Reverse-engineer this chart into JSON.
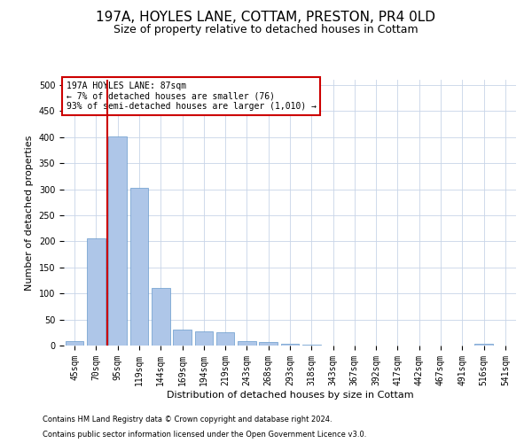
{
  "title": "197A, HOYLES LANE, COTTAM, PRESTON, PR4 0LD",
  "subtitle": "Size of property relative to detached houses in Cottam",
  "xlabel": "Distribution of detached houses by size in Cottam",
  "ylabel": "Number of detached properties",
  "footnote1": "Contains HM Land Registry data © Crown copyright and database right 2024.",
  "footnote2": "Contains public sector information licensed under the Open Government Licence v3.0.",
  "categories": [
    "45sqm",
    "70sqm",
    "95sqm",
    "119sqm",
    "144sqm",
    "169sqm",
    "194sqm",
    "219sqm",
    "243sqm",
    "268sqm",
    "293sqm",
    "318sqm",
    "343sqm",
    "367sqm",
    "392sqm",
    "417sqm",
    "442sqm",
    "467sqm",
    "491sqm",
    "516sqm",
    "541sqm"
  ],
  "values": [
    8,
    205,
    402,
    302,
    111,
    30,
    27,
    25,
    8,
    6,
    4,
    2,
    0,
    0,
    0,
    0,
    0,
    0,
    0,
    4,
    0
  ],
  "bar_color": "#aec6e8",
  "bar_edge_color": "#6699cc",
  "vline_color": "#cc0000",
  "vline_pos": 1.5,
  "annotation_line1": "197A HOYLES LANE: 87sqm",
  "annotation_line2": "← 7% of detached houses are smaller (76)",
  "annotation_line3": "93% of semi-detached houses are larger (1,010) →",
  "annotation_box_color": "#ffffff",
  "annotation_box_edge": "#cc0000",
  "ylim": [
    0,
    510
  ],
  "yticks": [
    0,
    50,
    100,
    150,
    200,
    250,
    300,
    350,
    400,
    450,
    500
  ],
  "background_color": "#ffffff",
  "grid_color": "#c8d4e8",
  "title_fontsize": 11,
  "subtitle_fontsize": 9,
  "xlabel_fontsize": 8,
  "ylabel_fontsize": 8,
  "tick_fontsize": 7,
  "annot_fontsize": 7,
  "footnote_fontsize": 6
}
